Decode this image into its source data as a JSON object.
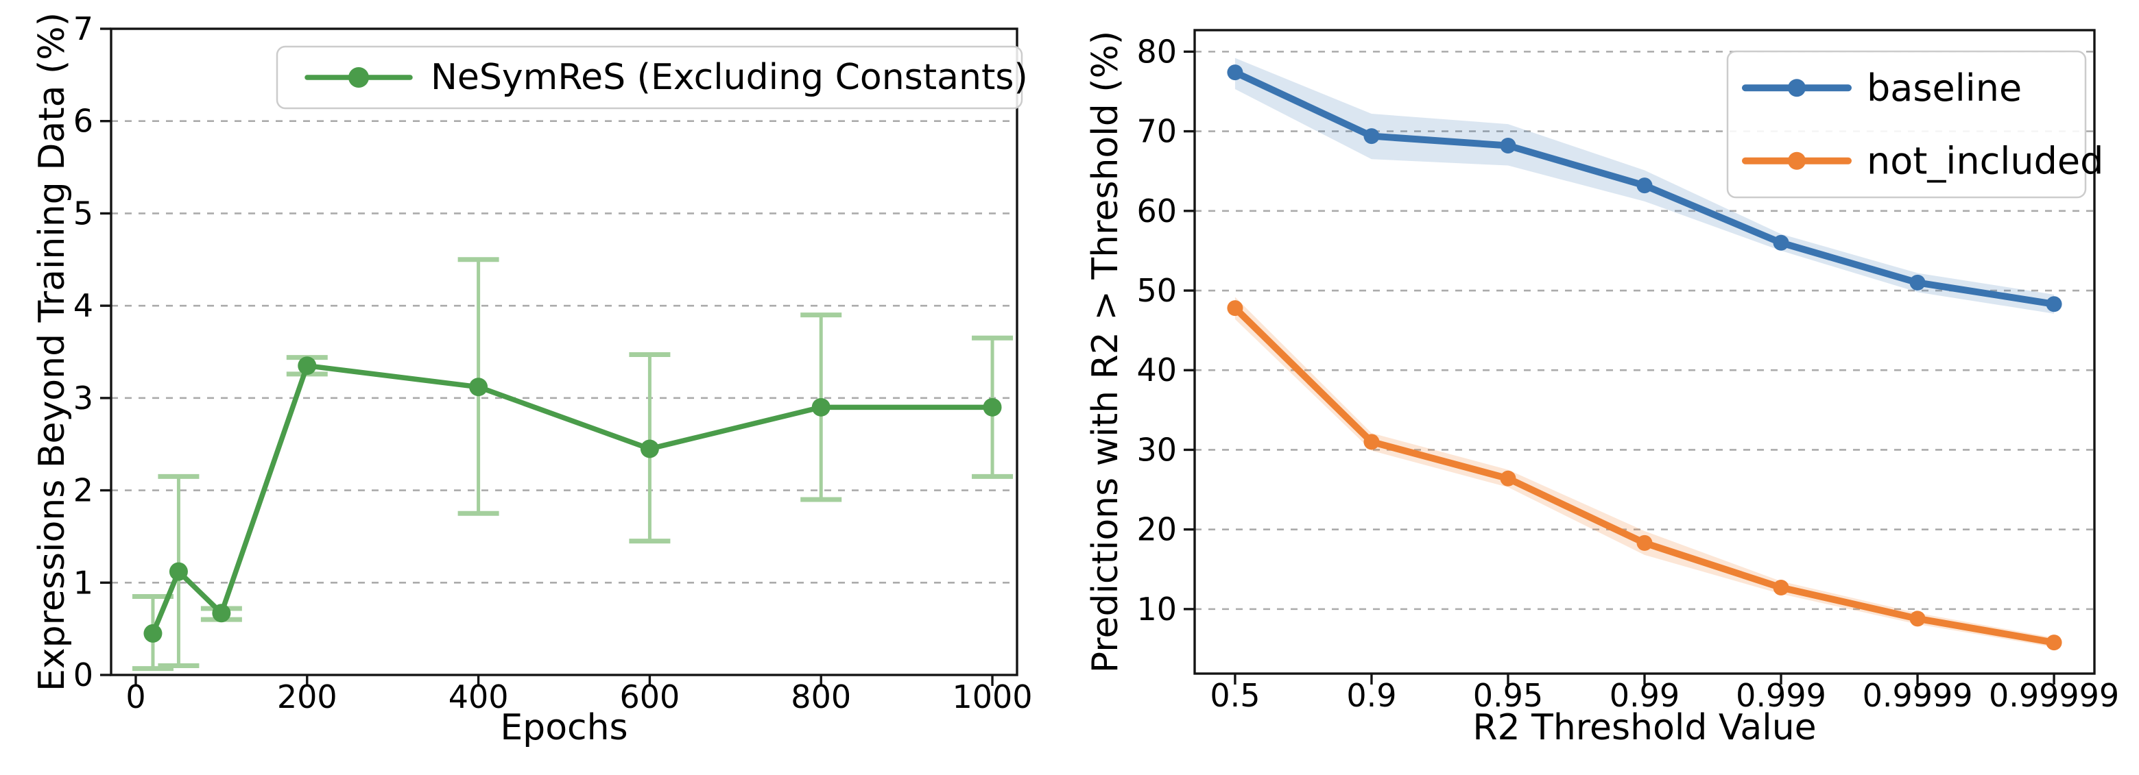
{
  "figure": {
    "background": "#ffffff"
  },
  "chart_data": [
    {
      "id": "expressions-beyond-training-data",
      "type": "line",
      "title": "",
      "xlabel": "Epochs",
      "ylabel": "Expressions Beyond Training Data (%)",
      "x": [
        20,
        50,
        100,
        200,
        400,
        600,
        800,
        1000
      ],
      "xticks": [
        0,
        200,
        400,
        600,
        800,
        1000
      ],
      "yticks": [
        0,
        1,
        2,
        3,
        4,
        5,
        6,
        7
      ],
      "xlim": [
        -28.8,
        1028.8
      ],
      "ylim": [
        0,
        7
      ],
      "grid": true,
      "legend_position": "upper right",
      "series": [
        {
          "name": "NeSymReS (Excluding Constants)",
          "color": "#4a9c4a",
          "errorbar_color": "#a4cf9d",
          "values": [
            0.45,
            1.12,
            0.67,
            3.35,
            3.12,
            2.45,
            2.9,
            2.9
          ],
          "err_low": [
            0.07,
            0.1,
            0.6,
            3.26,
            1.75,
            1.45,
            1.9,
            2.15
          ],
          "err_high": [
            0.85,
            2.15,
            0.72,
            3.44,
            4.5,
            3.47,
            3.9,
            3.65
          ]
        }
      ]
    },
    {
      "id": "predictions-above-r2-threshold",
      "type": "line",
      "title": "",
      "xlabel": "R2 Threshold Value",
      "ylabel": "Predictions with R2 > Threshold (%)",
      "categories": [
        "0.5",
        "0.9",
        "0.95",
        "0.99",
        "0.999",
        "0.9999",
        "0.99999"
      ],
      "yticks": [
        10,
        20,
        30,
        40,
        50,
        60,
        70,
        80
      ],
      "ylim": [
        1.9,
        82.7
      ],
      "grid": true,
      "legend_position": "upper right",
      "series": [
        {
          "name": "baseline",
          "color": "#3a74b0",
          "band_opacity": 0.18,
          "values": [
            77.4,
            69.4,
            68.2,
            63.2,
            56.0,
            51.0,
            48.3
          ],
          "band_low": [
            75.3,
            66.5,
            65.7,
            61.2,
            55.0,
            49.8,
            47.1
          ],
          "band_high": [
            79.2,
            72.2,
            70.9,
            65.1,
            57.1,
            52.2,
            49.5
          ]
        },
        {
          "name": "not_included",
          "color": "#ee8133",
          "band_opacity": 0.2,
          "values": [
            47.8,
            31.0,
            26.4,
            18.3,
            12.7,
            8.8,
            5.8
          ],
          "band_low": [
            46.4,
            29.9,
            25.3,
            16.8,
            11.9,
            8.1,
            5.2
          ],
          "band_high": [
            49.2,
            32.1,
            27.5,
            19.8,
            13.5,
            9.5,
            6.4
          ]
        }
      ]
    }
  ]
}
